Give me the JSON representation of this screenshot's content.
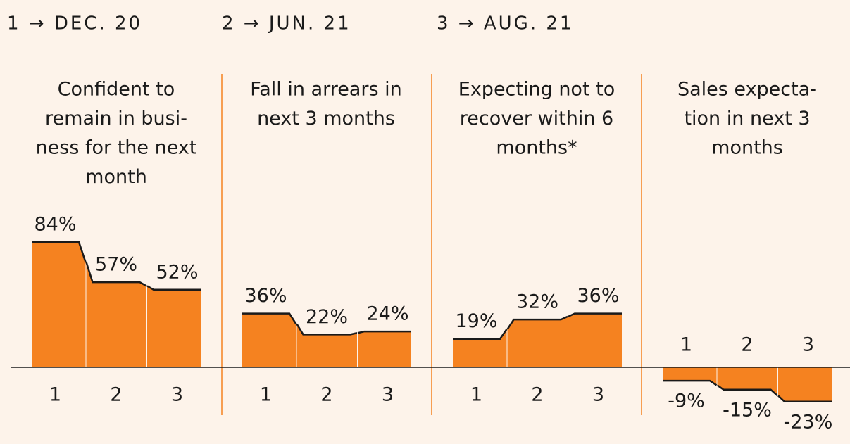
{
  "legend": [
    "1 → DEC. 20",
    "2 → JUN. 21",
    "3 → AUG. 21"
  ],
  "chart_data": [
    {
      "type": "area",
      "title": [
        "Confident to",
        "remain in busi-",
        "ness for the next",
        "month"
      ],
      "categories": [
        "1",
        "2",
        "3"
      ],
      "values": [
        84,
        57,
        52
      ],
      "value_labels": [
        "84%",
        "57%",
        "52%"
      ],
      "color": "#f58220"
    },
    {
      "type": "area",
      "title": [
        "Fall in arrears in",
        "next 3 months"
      ],
      "categories": [
        "1",
        "2",
        "3"
      ],
      "values": [
        36,
        22,
        24
      ],
      "value_labels": [
        "36%",
        "22%",
        "24%"
      ],
      "color": "#f58220"
    },
    {
      "type": "area",
      "title": [
        "Expecting not to",
        "recover within 6",
        "months*"
      ],
      "categories": [
        "1",
        "2",
        "3"
      ],
      "values": [
        19,
        32,
        36
      ],
      "value_labels": [
        "19%",
        "32%",
        "36%"
      ],
      "color": "#f58220"
    },
    {
      "type": "area",
      "title": [
        "Sales expecta-",
        "tion in next 3",
        "months"
      ],
      "categories": [
        "1",
        "2",
        "3"
      ],
      "values": [
        -9,
        -15,
        -23
      ],
      "value_labels": [
        "-9%",
        "-15%",
        "-23%"
      ],
      "color": "#f58220"
    }
  ]
}
